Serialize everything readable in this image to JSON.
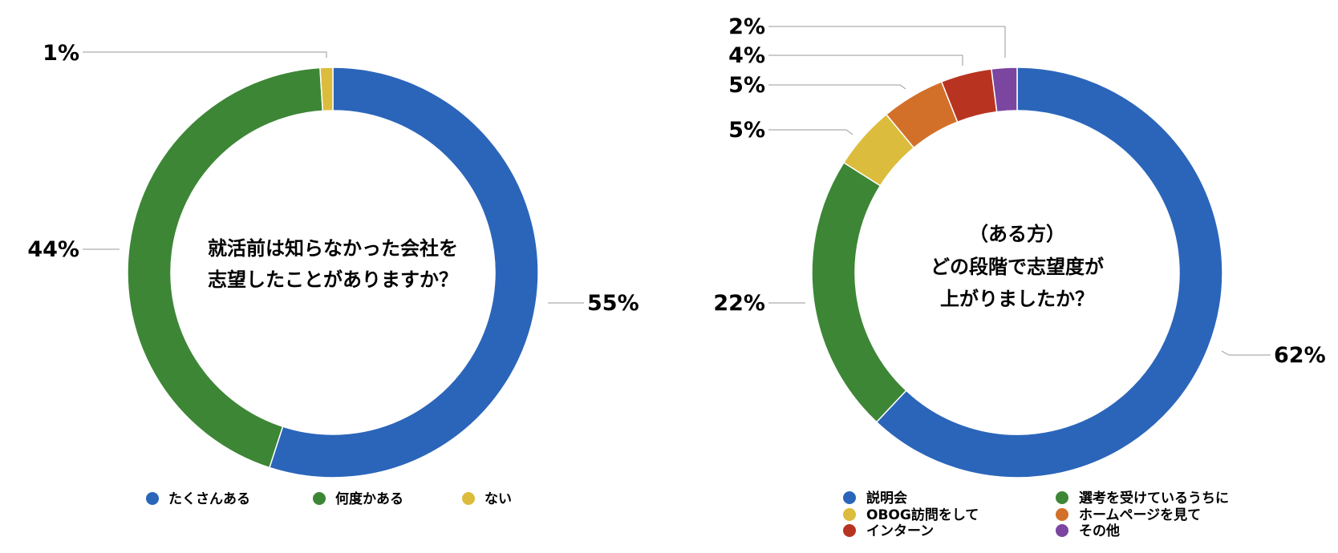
{
  "chart_data": [
    {
      "type": "pie",
      "title": "就活前は知らなかった会社を志望したことがありますか？",
      "title_lines": [
        "就活前は知らなかった会社を",
        "志望したことがありますか？"
      ],
      "categories": [
        "たくさんある",
        "何度かある",
        "ない"
      ],
      "values": [
        55,
        44,
        1
      ],
      "labels": [
        "55%",
        "44%",
        "1%"
      ],
      "colors": [
        "#2b65ba",
        "#3d8636",
        "#dcbc3c"
      ],
      "legend_position": "bottom"
    },
    {
      "type": "pie",
      "title": "（ある方）どの段階で志望度が上がりましたか？",
      "title_lines": [
        "（ある方）",
        "どの段階で志望度が",
        "上がりましたか？"
      ],
      "categories": [
        "説明会",
        "選考を受けているうちに",
        "OBOG訪問をして",
        "ホームページを見て",
        "インターン",
        "その他"
      ],
      "values": [
        62,
        22,
        5,
        5,
        4,
        2
      ],
      "labels": [
        "62%",
        "22%",
        "5%",
        "5%",
        "4%",
        "2%"
      ],
      "colors": [
        "#2b65ba",
        "#3d8636",
        "#dcbc3c",
        "#d2702a",
        "#b83420",
        "#7a46a0"
      ],
      "legend_position": "bottom"
    }
  ]
}
